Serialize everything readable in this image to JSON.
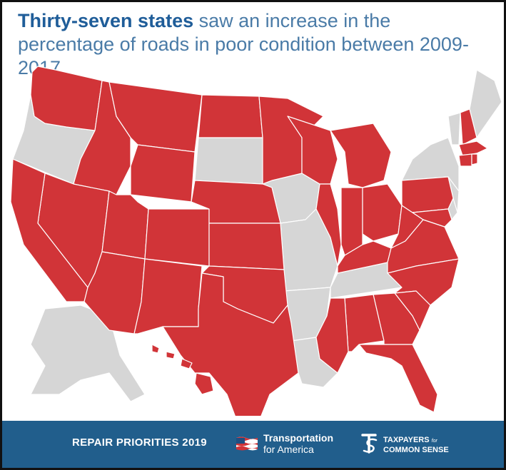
{
  "headline": {
    "bold": "Thirty-seven states",
    "rest": " saw an increase in the percentage of roads in poor condition between 2009-2017."
  },
  "colors": {
    "increase": "#d13438",
    "no_increase": "#d6d6d6",
    "headline_bold": "#1f5d99",
    "headline_text": "#4a7ba7",
    "footer_bg": "#215e8c"
  },
  "map": {
    "states_increase": [
      "WA",
      "ID",
      "MT",
      "WY",
      "NV",
      "CA",
      "UT",
      "CO",
      "AZ",
      "NM",
      "ND",
      "NE",
      "KS",
      "OK",
      "TX",
      "MN",
      "WI",
      "IL",
      "MI",
      "IN",
      "OH",
      "KY",
      "WV",
      "VA",
      "NC",
      "SC",
      "GA",
      "FL",
      "AL",
      "MS",
      "PA",
      "MD",
      "NH",
      "MA",
      "CT",
      "RI",
      "HI"
    ],
    "states_no_increase": [
      "OR",
      "SD",
      "IA",
      "MO",
      "AR",
      "LA",
      "TN",
      "NY",
      "VT",
      "ME",
      "NJ",
      "DE",
      "AK"
    ]
  },
  "footer": {
    "report": "REPAIR PRIORITIES 2019",
    "t4a_line1": "Transportation",
    "t4a_line2": "for America",
    "tcs_line1": "TAXPAYERS",
    "tcs_for": "for",
    "tcs_line2": "COMMON SENSE"
  }
}
